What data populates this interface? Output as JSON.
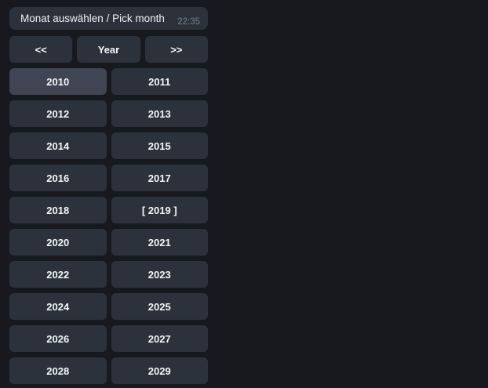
{
  "colors": {
    "background": "#17191f",
    "bubble_bg": "#2c323c",
    "button_bg": "#2c323c",
    "button_bg_highlighted": "#3f4552",
    "text": "#f4f6f8",
    "timestamp": "#78808b"
  },
  "message": {
    "text": "Monat auswählen / Pick month",
    "time": "22:35"
  },
  "keyboard": {
    "rows": [
      [
        {
          "label": "<<",
          "name": "prev-years-button"
        },
        {
          "label": "Year",
          "name": "year-mode-button"
        },
        {
          "label": ">>",
          "name": "next-years-button"
        }
      ],
      [
        {
          "label": "2010",
          "name": "year-2010-button",
          "highlighted": true
        },
        {
          "label": "2011",
          "name": "year-2011-button"
        }
      ],
      [
        {
          "label": "2012",
          "name": "year-2012-button"
        },
        {
          "label": "2013",
          "name": "year-2013-button"
        }
      ],
      [
        {
          "label": "2014",
          "name": "year-2014-button"
        },
        {
          "label": "2015",
          "name": "year-2015-button"
        }
      ],
      [
        {
          "label": "2016",
          "name": "year-2016-button"
        },
        {
          "label": "2017",
          "name": "year-2017-button"
        }
      ],
      [
        {
          "label": "2018",
          "name": "year-2018-button"
        },
        {
          "label": "[ 2019 ]",
          "name": "year-2019-button",
          "current": true
        }
      ],
      [
        {
          "label": "2020",
          "name": "year-2020-button"
        },
        {
          "label": "2021",
          "name": "year-2021-button"
        }
      ],
      [
        {
          "label": "2022",
          "name": "year-2022-button"
        },
        {
          "label": "2023",
          "name": "year-2023-button"
        }
      ],
      [
        {
          "label": "2024",
          "name": "year-2024-button"
        },
        {
          "label": "2025",
          "name": "year-2025-button"
        }
      ],
      [
        {
          "label": "2026",
          "name": "year-2026-button"
        },
        {
          "label": "2027",
          "name": "year-2027-button"
        }
      ],
      [
        {
          "label": "2028",
          "name": "year-2028-button"
        },
        {
          "label": "2029",
          "name": "year-2029-button"
        }
      ]
    ]
  }
}
